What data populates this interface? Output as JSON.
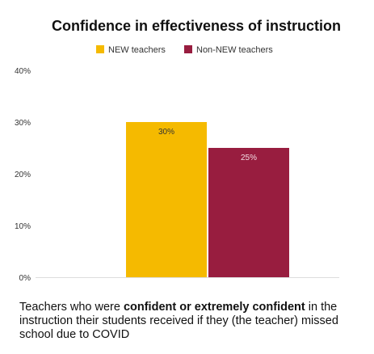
{
  "chart_data": {
    "type": "bar",
    "title": "Confidence in effectiveness of instruction",
    "categories": [
      ""
    ],
    "series": [
      {
        "name": "NEW teachers",
        "values": [
          30
        ],
        "color": "#F5BA00",
        "label": "30%",
        "label_color": "#333333"
      },
      {
        "name": "Non-NEW teachers",
        "values": [
          25
        ],
        "color": "#981D3F",
        "label": "25%",
        "label_color": "#F3DCE3"
      }
    ],
    "ylim": [
      0,
      40
    ],
    "yticks": [
      {
        "value": 0,
        "label": "0%"
      },
      {
        "value": 10,
        "label": "10%"
      },
      {
        "value": 20,
        "label": "20%"
      },
      {
        "value": 30,
        "label": "30%"
      },
      {
        "value": 40,
        "label": "40%"
      }
    ],
    "xlabel": "",
    "ylabel": "",
    "grid": false,
    "legend_position": "top"
  },
  "caption": {
    "part1": "Teachers who were ",
    "bold": "confident or extremely confident",
    "part2": " in the instruction their students received if they (the teacher) missed school due to COVID"
  }
}
